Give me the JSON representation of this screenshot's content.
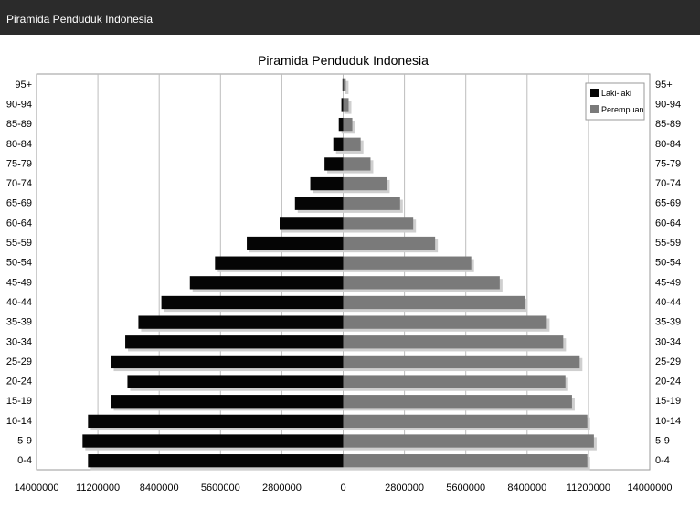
{
  "window": {
    "title": "Piramida Penduduk Indonesia"
  },
  "colors": {
    "male": "#050505",
    "female": "#7a7a7a",
    "grid": "#bdbdbd",
    "titlebar": "#2b2b2b"
  },
  "chart_data": {
    "type": "bar",
    "orientation": "horizontal",
    "title": "Piramida Penduduk Indonesia",
    "categories": [
      "0-4",
      "5-9",
      "10-14",
      "15-19",
      "20-24",
      "25-29",
      "30-34",
      "35-39",
      "40-44",
      "45-49",
      "50-54",
      "55-59",
      "60-64",
      "65-69",
      "70-74",
      "75-79",
      "80-84",
      "85-89",
      "90-94",
      "95+"
    ],
    "series": [
      {
        "name": "Laki-laki",
        "values": [
          11650000,
          11900000,
          11650000,
          10600000,
          9850000,
          10600000,
          9950000,
          9350000,
          8300000,
          7000000,
          5850000,
          4400000,
          2900000,
          2200000,
          1500000,
          850000,
          450000,
          200000,
          80000,
          30000
        ]
      },
      {
        "name": "Perempuan",
        "values": [
          11150000,
          11450000,
          11150000,
          10450000,
          10150000,
          10800000,
          10050000,
          9300000,
          8300000,
          7150000,
          5850000,
          4200000,
          3200000,
          2600000,
          2000000,
          1250000,
          800000,
          420000,
          250000,
          120000
        ]
      }
    ],
    "xlim": [
      -14000000,
      14000000
    ],
    "xticks": [
      "14000000",
      "11200000",
      "8400000",
      "5600000",
      "2800000",
      "0",
      "2800000",
      "5600000",
      "8400000",
      "11200000",
      "14000000"
    ],
    "grid": true,
    "legend_position": "top-right"
  }
}
